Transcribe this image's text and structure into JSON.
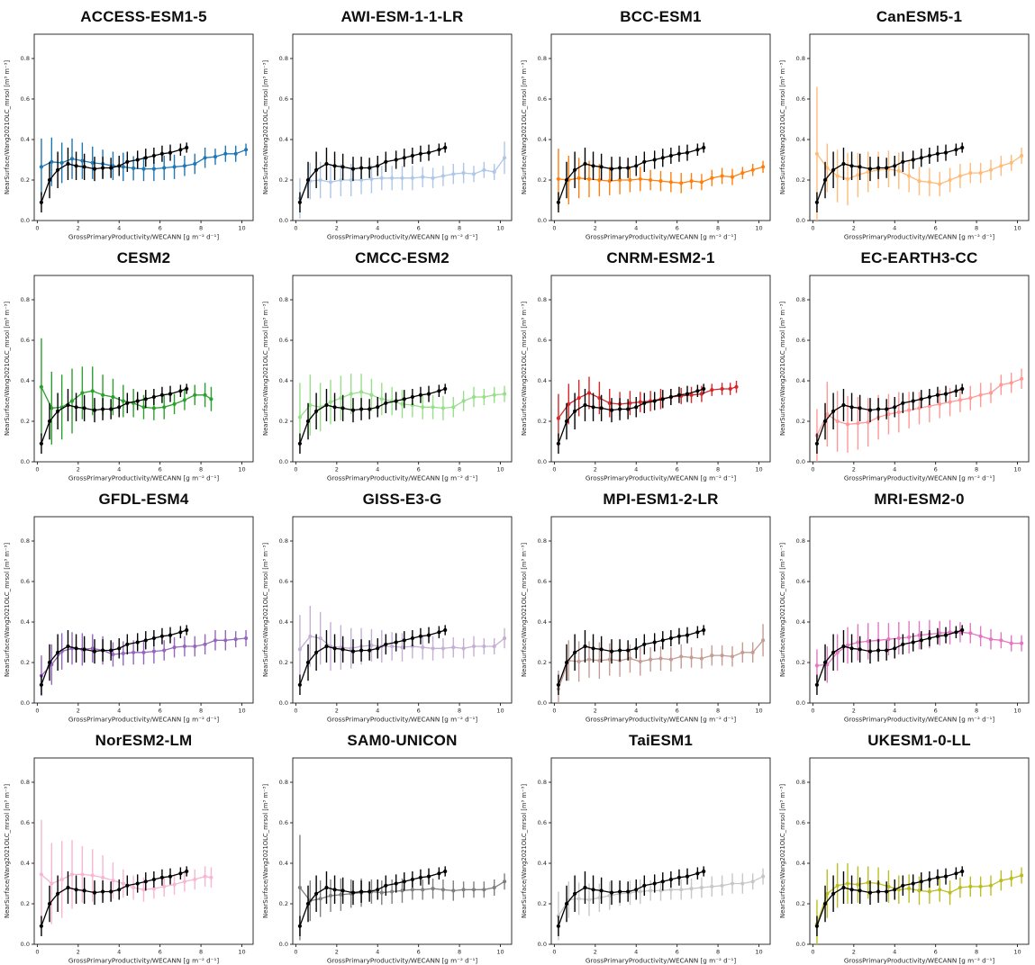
{
  "figure": {
    "background": "#ffffff",
    "xlabel": "GrossPrimaryProductivity/WECANN [g m⁻² d⁻¹]",
    "ylabel": "NearSurface/Wang2021OLC_mrsol [m³ m⁻³]",
    "xticks": [
      0,
      2,
      4,
      6,
      8,
      10
    ],
    "yticks": [
      "0.0",
      "0.2",
      "0.4",
      "0.6",
      "0.8"
    ],
    "xlim": [
      -0.15,
      10.55
    ],
    "ylim": [
      0,
      0.92
    ],
    "grid": false,
    "legend": "none",
    "reference_color": "#000000"
  },
  "reference_series": {
    "name": "observation-reference",
    "color": "#000000",
    "x": [
      0.2,
      0.6,
      1.0,
      1.5,
      1.9,
      2.3,
      2.8,
      3.2,
      3.6,
      4.0,
      4.4,
      4.9,
      5.3,
      5.7,
      6.1,
      6.5,
      7.0,
      7.3
    ],
    "y": [
      0.09,
      0.2,
      0.25,
      0.28,
      0.27,
      0.265,
      0.255,
      0.26,
      0.26,
      0.27,
      0.29,
      0.3,
      0.31,
      0.32,
      0.33,
      0.335,
      0.35,
      0.36
    ],
    "err": [
      0.05,
      0.09,
      0.09,
      0.08,
      0.07,
      0.065,
      0.06,
      0.055,
      0.05,
      0.05,
      0.05,
      0.045,
      0.045,
      0.04,
      0.04,
      0.04,
      0.03,
      0.025
    ]
  },
  "chart_data": [
    {
      "type": "line",
      "title": "ACCESS-ESM1-5",
      "color": "#1f77b4",
      "x": [
        0.2,
        0.7,
        1.2,
        1.7,
        2.2,
        2.7,
        3.2,
        3.7,
        4.2,
        4.7,
        5.2,
        5.7,
        6.2,
        6.7,
        7.2,
        7.7,
        8.2,
        8.7,
        9.2,
        9.7,
        10.2
      ],
      "y": [
        0.265,
        0.29,
        0.285,
        0.305,
        0.295,
        0.285,
        0.28,
        0.27,
        0.265,
        0.258,
        0.255,
        0.255,
        0.26,
        0.265,
        0.27,
        0.28,
        0.31,
        0.315,
        0.33,
        0.33,
        0.35
      ],
      "err": [
        0.14,
        0.12,
        0.1,
        0.1,
        0.09,
        0.08,
        0.07,
        0.07,
        0.07,
        0.06,
        0.06,
        0.06,
        0.06,
        0.06,
        0.05,
        0.05,
        0.05,
        0.04,
        0.04,
        0.04,
        0.03
      ]
    },
    {
      "type": "line",
      "title": "AWI-ESM-1-1-LR",
      "color": "#aec7e8",
      "x": [
        0.2,
        0.7,
        1.2,
        1.7,
        2.2,
        2.7,
        3.2,
        3.7,
        4.2,
        4.7,
        5.2,
        5.7,
        6.2,
        6.7,
        7.2,
        7.7,
        8.2,
        8.7,
        9.2,
        9.7,
        10.2
      ],
      "y": [
        0.11,
        0.195,
        0.2,
        0.19,
        0.2,
        0.2,
        0.2,
        0.205,
        0.21,
        0.21,
        0.21,
        0.21,
        0.215,
        0.21,
        0.22,
        0.23,
        0.235,
        0.23,
        0.25,
        0.24,
        0.31
      ],
      "err": [
        0.1,
        0.09,
        0.09,
        0.08,
        0.08,
        0.08,
        0.07,
        0.07,
        0.06,
        0.06,
        0.06,
        0.06,
        0.05,
        0.05,
        0.05,
        0.05,
        0.05,
        0.04,
        0.04,
        0.04,
        0.08
      ]
    },
    {
      "type": "line",
      "title": "BCC-ESM1",
      "color": "#ff7f0e",
      "x": [
        0.2,
        0.7,
        1.2,
        1.7,
        2.2,
        2.7,
        3.2,
        3.7,
        4.2,
        4.7,
        5.2,
        5.7,
        6.2,
        6.7,
        7.2,
        7.7,
        8.2,
        8.7,
        9.2,
        9.7,
        10.2
      ],
      "y": [
        0.205,
        0.2,
        0.21,
        0.205,
        0.2,
        0.195,
        0.2,
        0.2,
        0.205,
        0.2,
        0.195,
        0.19,
        0.185,
        0.195,
        0.19,
        0.21,
        0.22,
        0.215,
        0.235,
        0.25,
        0.265
      ],
      "err": [
        0.15,
        0.12,
        0.1,
        0.09,
        0.08,
        0.07,
        0.07,
        0.06,
        0.06,
        0.05,
        0.05,
        0.05,
        0.05,
        0.04,
        0.04,
        0.04,
        0.04,
        0.04,
        0.03,
        0.03,
        0.03
      ]
    },
    {
      "type": "line",
      "title": "CanESM5-1",
      "color": "#ffbb78",
      "x": [
        0.2,
        0.7,
        1.2,
        1.7,
        2.2,
        2.7,
        3.2,
        3.7,
        4.2,
        4.7,
        5.2,
        5.7,
        6.2,
        6.7,
        7.2,
        7.7,
        8.2,
        8.7,
        9.2,
        9.7,
        10.2
      ],
      "y": [
        0.33,
        0.26,
        0.22,
        0.205,
        0.225,
        0.24,
        0.25,
        0.255,
        0.245,
        0.22,
        0.195,
        0.19,
        0.18,
        0.2,
        0.22,
        0.235,
        0.235,
        0.25,
        0.27,
        0.285,
        0.32
      ],
      "err": [
        0.33,
        0.12,
        0.13,
        0.13,
        0.11,
        0.1,
        0.09,
        0.09,
        0.09,
        0.08,
        0.07,
        0.07,
        0.06,
        0.06,
        0.06,
        0.05,
        0.05,
        0.05,
        0.05,
        0.04,
        0.04
      ]
    },
    {
      "type": "line",
      "title": "CESM2",
      "color": "#2ca02c",
      "x": [
        0.2,
        0.7,
        1.2,
        1.7,
        2.2,
        2.7,
        3.2,
        3.7,
        4.2,
        4.7,
        5.2,
        5.7,
        6.2,
        6.7,
        7.2,
        7.7,
        8.2,
        8.5
      ],
      "y": [
        0.37,
        0.265,
        0.27,
        0.3,
        0.34,
        0.35,
        0.33,
        0.32,
        0.3,
        0.29,
        0.27,
        0.265,
        0.27,
        0.285,
        0.305,
        0.33,
        0.33,
        0.31
      ],
      "err": [
        0.24,
        0.18,
        0.16,
        0.16,
        0.13,
        0.12,
        0.1,
        0.09,
        0.08,
        0.07,
        0.06,
        0.06,
        0.06,
        0.05,
        0.05,
        0.05,
        0.06,
        0.06
      ]
    },
    {
      "type": "line",
      "title": "CMCC-ESM2",
      "color": "#98df8a",
      "x": [
        0.2,
        0.7,
        1.2,
        1.7,
        2.2,
        2.7,
        3.2,
        3.7,
        4.2,
        4.7,
        5.2,
        5.7,
        6.2,
        6.7,
        7.2,
        7.7,
        8.2,
        8.7,
        9.2,
        9.7,
        10.2
      ],
      "y": [
        0.22,
        0.28,
        0.27,
        0.295,
        0.315,
        0.335,
        0.345,
        0.33,
        0.31,
        0.3,
        0.285,
        0.28,
        0.27,
        0.27,
        0.265,
        0.27,
        0.3,
        0.32,
        0.32,
        0.33,
        0.335
      ],
      "err": [
        0.17,
        0.15,
        0.12,
        0.11,
        0.11,
        0.1,
        0.09,
        0.08,
        0.08,
        0.07,
        0.07,
        0.06,
        0.06,
        0.06,
        0.06,
        0.05,
        0.05,
        0.05,
        0.04,
        0.04,
        0.04
      ]
    },
    {
      "type": "line",
      "title": "CNRM-ESM2-1",
      "color": "#d62728",
      "x": [
        0.2,
        0.7,
        1.2,
        1.7,
        2.2,
        2.7,
        3.2,
        3.7,
        4.2,
        4.7,
        5.2,
        5.7,
        6.2,
        6.7,
        7.2,
        7.7,
        8.2,
        8.6,
        8.9
      ],
      "y": [
        0.215,
        0.285,
        0.315,
        0.34,
        0.315,
        0.29,
        0.285,
        0.29,
        0.295,
        0.3,
        0.31,
        0.32,
        0.325,
        0.33,
        0.335,
        0.355,
        0.36,
        0.36,
        0.37
      ],
      "err": [
        0.12,
        0.1,
        0.09,
        0.08,
        0.08,
        0.07,
        0.06,
        0.06,
        0.05,
        0.05,
        0.05,
        0.04,
        0.04,
        0.04,
        0.04,
        0.03,
        0.03,
        0.03,
        0.03
      ]
    },
    {
      "type": "line",
      "title": "EC-EARTH3-CC",
      "color": "#ff9896",
      "x": [
        0.2,
        0.7,
        1.2,
        1.7,
        2.2,
        2.7,
        3.2,
        3.7,
        4.2,
        4.7,
        5.2,
        5.7,
        6.2,
        6.7,
        7.2,
        7.7,
        8.2,
        8.7,
        9.2,
        9.7,
        10.2
      ],
      "y": [
        0.13,
        0.235,
        0.2,
        0.185,
        0.19,
        0.195,
        0.22,
        0.235,
        0.245,
        0.255,
        0.265,
        0.275,
        0.285,
        0.295,
        0.305,
        0.315,
        0.33,
        0.34,
        0.38,
        0.39,
        0.41
      ],
      "err": [
        0.13,
        0.16,
        0.15,
        0.14,
        0.13,
        0.12,
        0.11,
        0.1,
        0.1,
        0.09,
        0.08,
        0.08,
        0.07,
        0.07,
        0.06,
        0.06,
        0.06,
        0.05,
        0.05,
        0.05,
        0.05
      ]
    },
    {
      "type": "line",
      "title": "GFDL-ESM4",
      "color": "#9467bd",
      "x": [
        0.2,
        0.7,
        1.2,
        1.7,
        2.2,
        2.7,
        3.2,
        3.7,
        4.2,
        4.7,
        5.2,
        5.7,
        6.2,
        6.7,
        7.2,
        7.7,
        8.2,
        8.7,
        9.2,
        9.7,
        10.2
      ],
      "y": [
        0.135,
        0.19,
        0.255,
        0.27,
        0.265,
        0.27,
        0.26,
        0.24,
        0.245,
        0.25,
        0.25,
        0.255,
        0.26,
        0.275,
        0.28,
        0.28,
        0.29,
        0.31,
        0.31,
        0.315,
        0.32
      ],
      "err": [
        0.1,
        0.1,
        0.09,
        0.08,
        0.08,
        0.07,
        0.07,
        0.06,
        0.06,
        0.06,
        0.06,
        0.06,
        0.05,
        0.05,
        0.05,
        0.05,
        0.05,
        0.05,
        0.05,
        0.04,
        0.04
      ]
    },
    {
      "type": "line",
      "title": "GISS-E3-G",
      "color": "#c5b0d5",
      "x": [
        0.2,
        0.7,
        1.2,
        1.7,
        2.2,
        2.7,
        3.2,
        3.7,
        4.2,
        4.7,
        5.2,
        5.7,
        6.2,
        6.7,
        7.2,
        7.7,
        8.2,
        8.7,
        9.2,
        9.7,
        10.2
      ],
      "y": [
        0.265,
        0.33,
        0.32,
        0.28,
        0.275,
        0.27,
        0.28,
        0.285,
        0.28,
        0.28,
        0.275,
        0.28,
        0.275,
        0.27,
        0.27,
        0.275,
        0.27,
        0.28,
        0.28,
        0.28,
        0.32
      ],
      "err": [
        0.17,
        0.15,
        0.13,
        0.12,
        0.11,
        0.1,
        0.09,
        0.08,
        0.08,
        0.07,
        0.07,
        0.06,
        0.06,
        0.06,
        0.05,
        0.05,
        0.05,
        0.05,
        0.04,
        0.04,
        0.05
      ]
    },
    {
      "type": "line",
      "title": "MPI-ESM1-2-LR",
      "color": "#c49c94",
      "x": [
        0.2,
        0.7,
        1.2,
        1.7,
        2.2,
        2.7,
        3.2,
        3.7,
        4.2,
        4.7,
        5.2,
        5.7,
        6.2,
        6.7,
        7.2,
        7.7,
        8.2,
        8.7,
        9.2,
        9.7,
        10.2
      ],
      "y": [
        0.07,
        0.21,
        0.205,
        0.215,
        0.21,
        0.215,
        0.21,
        0.22,
        0.205,
        0.215,
        0.22,
        0.215,
        0.23,
        0.225,
        0.22,
        0.235,
        0.235,
        0.23,
        0.25,
        0.25,
        0.31
      ],
      "err": [
        0.09,
        0.1,
        0.1,
        0.09,
        0.09,
        0.08,
        0.08,
        0.07,
        0.07,
        0.06,
        0.06,
        0.06,
        0.06,
        0.05,
        0.05,
        0.05,
        0.05,
        0.05,
        0.05,
        0.05,
        0.08
      ]
    },
    {
      "type": "line",
      "title": "MRI-ESM2-0",
      "color": "#e377c2",
      "x": [
        0.2,
        0.7,
        1.2,
        1.7,
        2.2,
        2.7,
        3.2,
        3.7,
        4.2,
        4.7,
        5.2,
        5.7,
        6.2,
        6.7,
        7.2,
        7.7,
        8.2,
        8.7,
        9.2,
        9.7,
        10.2
      ],
      "y": [
        0.185,
        0.19,
        0.25,
        0.285,
        0.3,
        0.305,
        0.31,
        0.315,
        0.32,
        0.325,
        0.335,
        0.34,
        0.345,
        0.35,
        0.35,
        0.345,
        0.33,
        0.315,
        0.31,
        0.295,
        0.295
      ],
      "err": [
        0.08,
        0.09,
        0.09,
        0.09,
        0.09,
        0.09,
        0.09,
        0.08,
        0.08,
        0.08,
        0.07,
        0.07,
        0.06,
        0.06,
        0.05,
        0.05,
        0.05,
        0.05,
        0.04,
        0.04,
        0.04
      ]
    },
    {
      "type": "line",
      "title": "NorESM2-LM",
      "color": "#f7b6d2",
      "x": [
        0.2,
        0.7,
        1.2,
        1.7,
        2.2,
        2.7,
        3.2,
        3.7,
        4.2,
        4.7,
        5.2,
        5.7,
        6.2,
        6.7,
        7.2,
        7.7,
        8.2,
        8.5
      ],
      "y": [
        0.345,
        0.3,
        0.32,
        0.345,
        0.345,
        0.34,
        0.33,
        0.315,
        0.3,
        0.28,
        0.27,
        0.275,
        0.285,
        0.295,
        0.31,
        0.32,
        0.335,
        0.33
      ],
      "err": [
        0.27,
        0.2,
        0.19,
        0.17,
        0.14,
        0.13,
        0.11,
        0.09,
        0.07,
        0.06,
        0.06,
        0.05,
        0.05,
        0.05,
        0.05,
        0.05,
        0.05,
        0.05
      ]
    },
    {
      "type": "line",
      "title": "SAM0-UNICON",
      "color": "#7f7f7f",
      "x": [
        0.2,
        0.7,
        1.2,
        1.7,
        2.2,
        2.7,
        3.2,
        3.7,
        4.2,
        4.7,
        5.2,
        5.7,
        6.2,
        6.7,
        7.2,
        7.7,
        8.2,
        8.7,
        9.2,
        9.7,
        10.2
      ],
      "y": [
        0.28,
        0.215,
        0.225,
        0.24,
        0.245,
        0.25,
        0.255,
        0.26,
        0.255,
        0.26,
        0.265,
        0.27,
        0.27,
        0.275,
        0.27,
        0.265,
        0.27,
        0.27,
        0.27,
        0.28,
        0.31
      ],
      "err": [
        0.26,
        0.1,
        0.09,
        0.08,
        0.08,
        0.07,
        0.07,
        0.06,
        0.06,
        0.06,
        0.06,
        0.05,
        0.05,
        0.05,
        0.05,
        0.05,
        0.04,
        0.04,
        0.04,
        0.04,
        0.04
      ]
    },
    {
      "type": "line",
      "title": "TaiESM1",
      "color": "#c7c7c7",
      "x": [
        0.2,
        0.7,
        1.2,
        1.7,
        2.2,
        2.7,
        3.2,
        3.7,
        4.2,
        4.7,
        5.2,
        5.7,
        6.2,
        6.7,
        7.2,
        7.7,
        8.2,
        8.7,
        9.2,
        9.7,
        10.2
      ],
      "y": [
        0.14,
        0.22,
        0.225,
        0.22,
        0.23,
        0.24,
        0.25,
        0.255,
        0.26,
        0.265,
        0.265,
        0.27,
        0.27,
        0.275,
        0.28,
        0.285,
        0.29,
        0.3,
        0.3,
        0.31,
        0.335
      ],
      "err": [
        0.12,
        0.09,
        0.08,
        0.08,
        0.07,
        0.07,
        0.06,
        0.06,
        0.06,
        0.05,
        0.05,
        0.05,
        0.05,
        0.05,
        0.05,
        0.05,
        0.05,
        0.05,
        0.05,
        0.04,
        0.04
      ]
    },
    {
      "type": "line",
      "title": "UKESM1-0-LL",
      "color": "#bcbd22",
      "x": [
        0.2,
        0.7,
        1.2,
        1.7,
        2.2,
        2.7,
        3.2,
        3.7,
        4.2,
        4.7,
        5.2,
        5.7,
        6.2,
        6.7,
        7.2,
        7.7,
        8.2,
        8.7,
        9.2,
        9.7,
        10.2
      ],
      "y": [
        0.1,
        0.25,
        0.29,
        0.3,
        0.295,
        0.305,
        0.3,
        0.285,
        0.27,
        0.275,
        0.265,
        0.26,
        0.27,
        0.255,
        0.28,
        0.285,
        0.285,
        0.29,
        0.315,
        0.325,
        0.34
      ],
      "err": [
        0.12,
        0.12,
        0.11,
        0.1,
        0.09,
        0.08,
        0.08,
        0.08,
        0.07,
        0.07,
        0.07,
        0.06,
        0.06,
        0.06,
        0.05,
        0.05,
        0.05,
        0.05,
        0.05,
        0.04,
        0.04
      ]
    }
  ]
}
